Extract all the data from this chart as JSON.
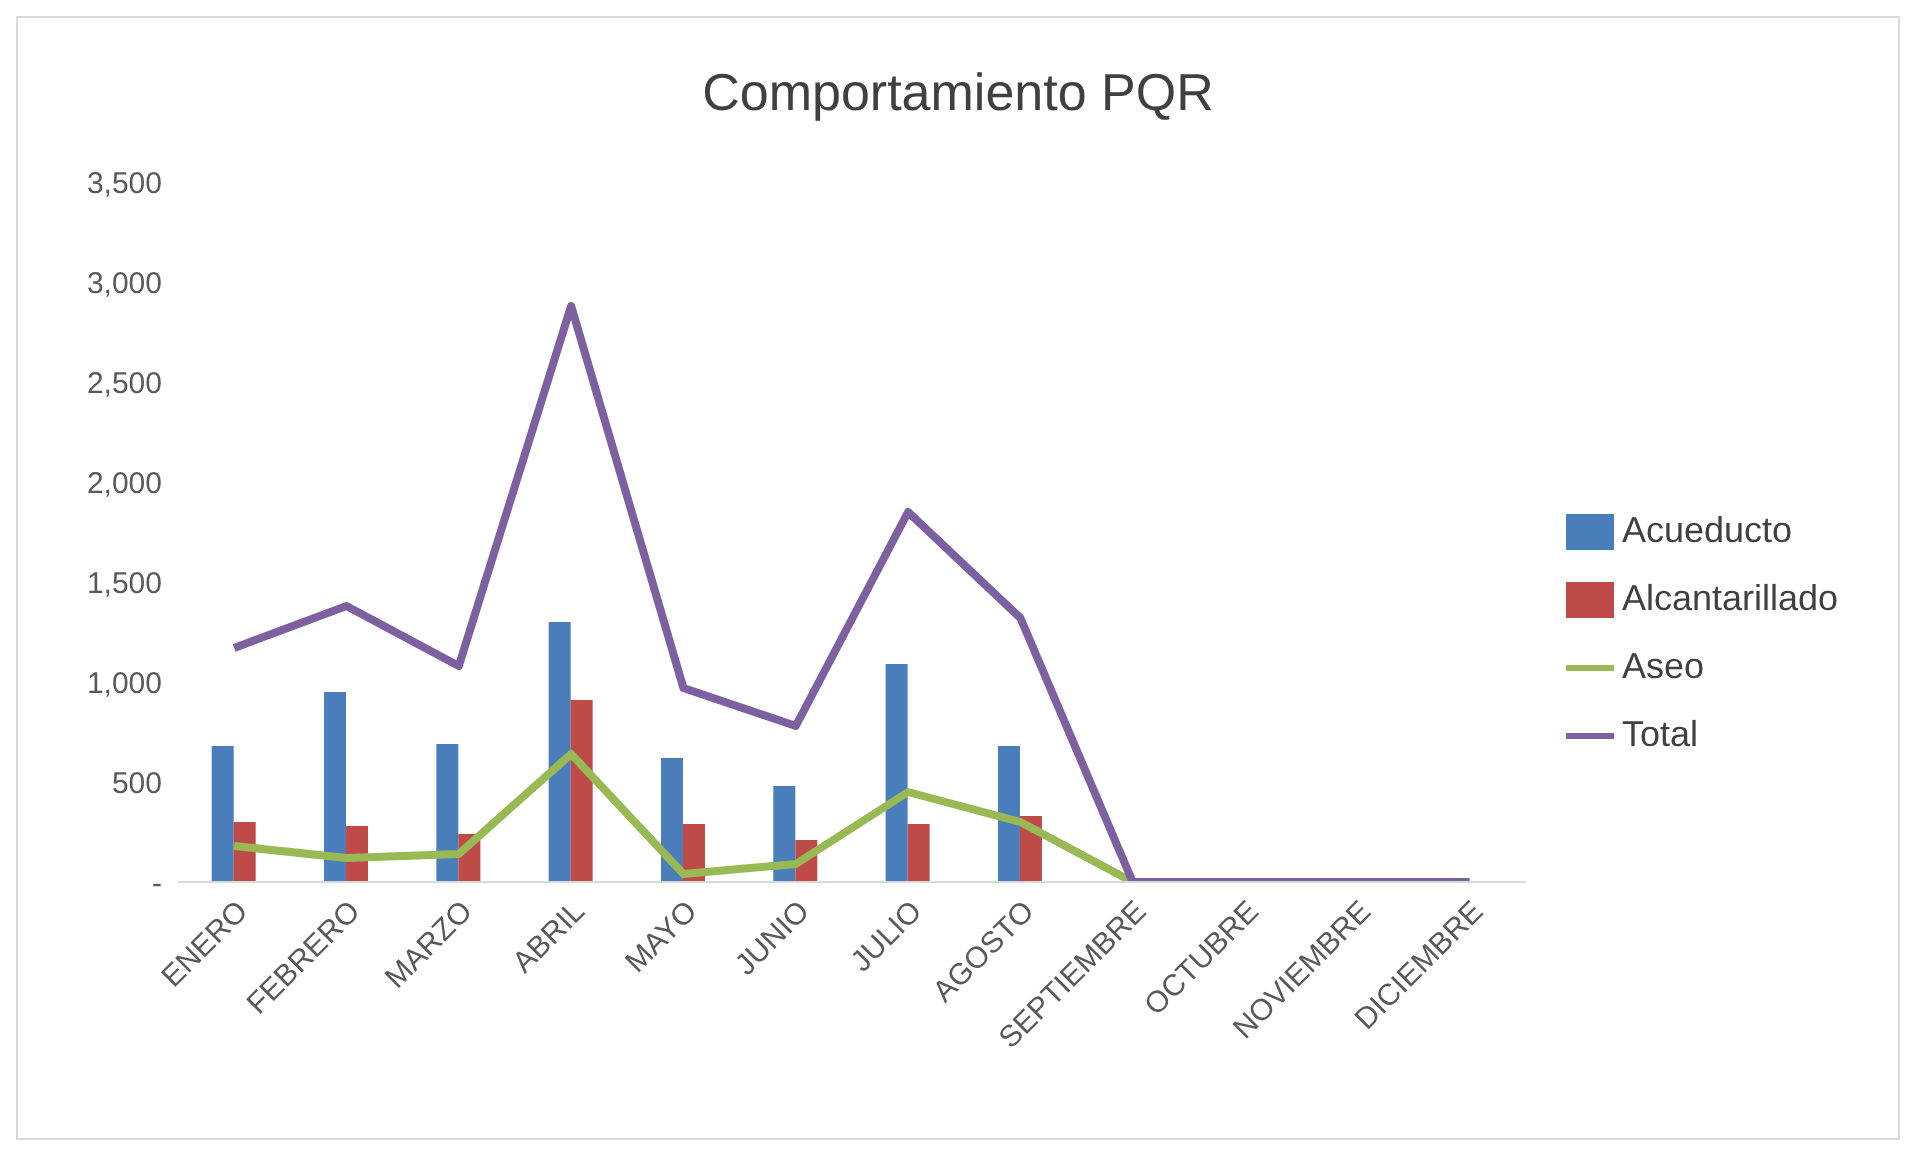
{
  "chart_data": {
    "type": "bar",
    "title": "Comportamiento PQR",
    "categories": [
      "ENERO",
      "FEBRERO",
      "MARZO",
      "ABRIL",
      "MAYO",
      "JUNIO",
      "JULIO",
      "AGOSTO",
      "SEPTIEMBRE",
      "OCTUBRE",
      "NOVIEMBRE",
      "DICIEMBRE"
    ],
    "series": [
      {
        "name": "Acueducto",
        "color": "#4a7ebb",
        "values": [
          680,
          950,
          690,
          1300,
          620,
          480,
          1090,
          680,
          null,
          null,
          null,
          null
        ]
      },
      {
        "name": "Alcantarillado",
        "color": "#be4b48",
        "values": [
          300,
          280,
          240,
          910,
          290,
          210,
          290,
          330,
          null,
          null,
          null,
          null
        ]
      },
      {
        "name": "Aseo",
        "type": "line",
        "color": "#98b954",
        "values": [
          180,
          120,
          140,
          640,
          40,
          90,
          450,
          300,
          0,
          null,
          null,
          null
        ]
      },
      {
        "name": "Total",
        "type": "line",
        "color": "#7d60a0",
        "values": [
          1170,
          1380,
          1080,
          2880,
          970,
          780,
          1850,
          1320,
          0,
          0,
          0,
          0
        ]
      }
    ],
    "ylim": [
      0,
      3500
    ],
    "yticks": [
      {
        "value": 0,
        "label": "-"
      },
      {
        "value": 500,
        "label": "500"
      },
      {
        "value": 1000,
        "label": "1,000"
      },
      {
        "value": 1500,
        "label": "1,500"
      },
      {
        "value": 2000,
        "label": "2,000"
      },
      {
        "value": 2500,
        "label": "2,500"
      },
      {
        "value": 3000,
        "label": "3,000"
      },
      {
        "value": 3500,
        "label": "3,500"
      }
    ],
    "grid": false,
    "legend": "right",
    "marker": "none"
  }
}
